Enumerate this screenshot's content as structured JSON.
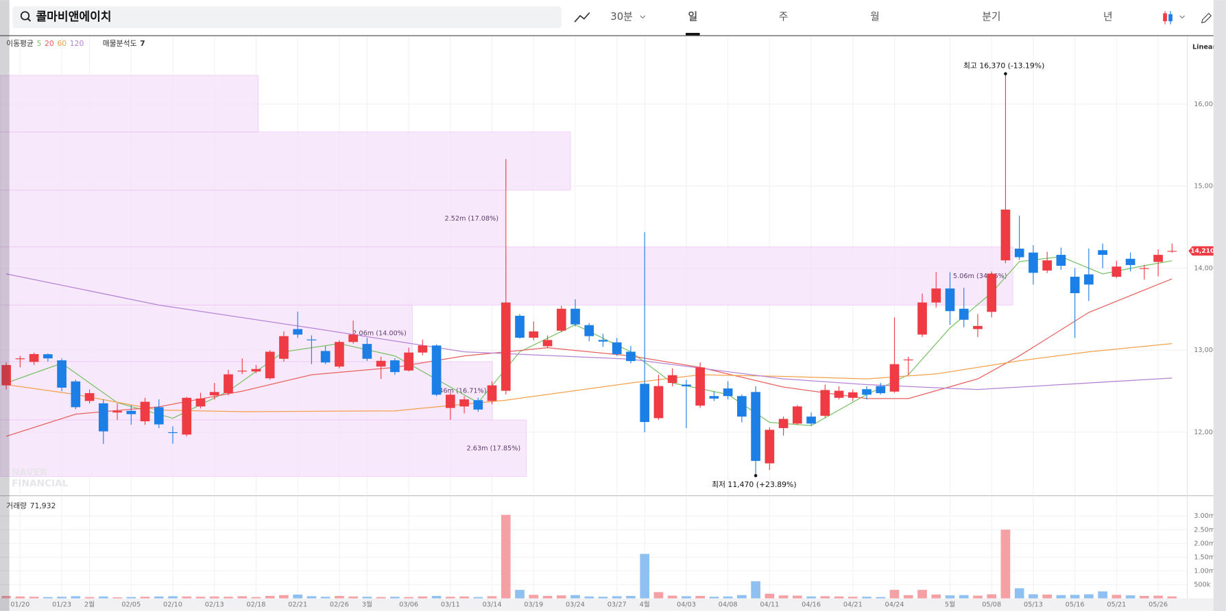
{
  "header": {
    "query": "콜마비앤에이치",
    "interval": "30분",
    "periods": [
      "일",
      "주",
      "월",
      "분기",
      "년"
    ],
    "active_period": 0
  },
  "watermark": [
    "NAVER",
    "FINANCIAL"
  ],
  "chart_data": [
    {
      "type": "candlestick",
      "ma_label": "이동평균",
      "profile_label": "매물분석도",
      "profile_count": 7,
      "scale_label": "Linear",
      "current_label": "14,210",
      "max_label": "최고 16,370 (-13.19%)",
      "min_label": "최저 11,470 (+23.89%)",
      "up_color": "#ee3b44",
      "down_color": "#1c7fe5",
      "ylim": [
        11240,
        16830
      ],
      "yticks": [
        {
          "value": 12000,
          "label": "12,000"
        },
        {
          "value": 13000,
          "label": "13,000"
        },
        {
          "value": 14000,
          "label": "14,000"
        },
        {
          "value": 15000,
          "label": "15,000"
        },
        {
          "value": 16000,
          "label": "16,000"
        }
      ],
      "grid": true,
      "open": [
        12571,
        12890,
        12857,
        12950,
        12876,
        12619,
        12381,
        12352,
        12240,
        12260,
        12133,
        12305,
        12000,
        11971,
        12314,
        12450,
        12476,
        12740,
        12740,
        12657,
        12895,
        13257,
        13130,
        12990,
        12800,
        13100,
        13076,
        12800,
        12876,
        12752,
        12971,
        13057,
        12295,
        12314,
        12390,
        12381,
        12505,
        13419,
        13152,
        13048,
        13238,
        13505,
        13305,
        13124,
        13095,
        12981,
        12590,
        12171,
        12600,
        12580,
        12324,
        12440,
        12533,
        12440,
        12490,
        11620,
        12050,
        12105,
        12190,
        12200,
        12419,
        12419,
        12524,
        12562,
        12495,
        12880,
        13190,
        13581,
        13752,
        13505,
        13257,
        13467,
        14095,
        14238,
        14190,
        13971,
        14162,
        13895,
        13924,
        14219,
        13895,
        14114,
        13995,
        14076,
        14210
      ],
      "high": [
        12850,
        12930,
        12970,
        12960,
        12900,
        12640,
        12520,
        12400,
        12350,
        12330,
        12420,
        12400,
        12070,
        12430,
        12480,
        12600,
        12760,
        12900,
        12820,
        13000,
        13230,
        13470,
        13180,
        13050,
        13120,
        13360,
        13150,
        12920,
        12900,
        13030,
        13130,
        13070,
        12480,
        12440,
        12420,
        12620,
        15330,
        13440,
        13350,
        13180,
        13540,
        13620,
        13330,
        13200,
        13150,
        13050,
        14438,
        12700,
        12780,
        12640,
        12850,
        12500,
        12620,
        12460,
        12560,
        12060,
        12190,
        12330,
        12240,
        12580,
        12560,
        12520,
        12560,
        12600,
        13400,
        12920,
        13690,
        13950,
        13950,
        13760,
        13440,
        13960,
        16370,
        14640,
        14280,
        14200,
        14250,
        14000,
        14240,
        14300,
        14090,
        14190,
        14040,
        14230,
        14300
      ],
      "low": [
        12520,
        12790,
        12820,
        12860,
        12500,
        12280,
        12350,
        11857,
        12150,
        12090,
        12090,
        12050,
        11860,
        11950,
        12290,
        12400,
        12450,
        12710,
        12720,
        12640,
        12860,
        13150,
        12830,
        12830,
        12780,
        13080,
        12870,
        12650,
        12700,
        12740,
        12940,
        12440,
        12150,
        12230,
        12250,
        12340,
        12460,
        13140,
        13120,
        13030,
        13220,
        13290,
        13110,
        13040,
        12930,
        12840,
        12000,
        12150,
        12560,
        12050,
        12300,
        12380,
        12400,
        12120,
        11470,
        11540,
        11960,
        12090,
        12080,
        12180,
        12400,
        12380,
        12400,
        12460,
        12480,
        12700,
        13160,
        13520,
        13310,
        13280,
        13160,
        13400,
        14060,
        14100,
        13800,
        13940,
        13980,
        13150,
        13600,
        14000,
        13880,
        13960,
        13860,
        13900,
        14190
      ],
      "close": [
        12819,
        12900,
        12952,
        12900,
        12543,
        12305,
        12476,
        12010,
        12260,
        12220,
        12371,
        12095,
        11990,
        12419,
        12410,
        12490,
        12705,
        12750,
        12770,
        12981,
        13171,
        13190,
        13120,
        12850,
        13100,
        13190,
        12895,
        12870,
        12733,
        12971,
        13057,
        12457,
        12457,
        12400,
        12276,
        12571,
        13581,
        13152,
        13229,
        13124,
        13505,
        13314,
        13171,
        13105,
        12952,
        12867,
        12124,
        12562,
        12695,
        12560,
        12790,
        12410,
        12440,
        12190,
        11650,
        12029,
        12162,
        12314,
        12105,
        12514,
        12505,
        12486,
        12457,
        12476,
        12829,
        12886,
        13581,
        13752,
        13476,
        13371,
        13295,
        13933,
        14714,
        14133,
        13943,
        14095,
        14029,
        13695,
        13800,
        14162,
        14019,
        14038,
        14000,
        14162,
        14210
      ],
      "moving_averages": [
        {
          "name": "5",
          "color": "#79c267",
          "x": [
            0,
            4,
            8,
            12,
            16,
            20,
            24,
            28,
            32,
            34,
            37,
            41,
            45,
            48,
            52,
            55,
            58,
            62,
            65,
            68,
            71,
            73,
            76,
            79,
            82,
            84
          ],
          "values": [
            12600,
            12840,
            12360,
            12170,
            12500,
            12980,
            13080,
            12930,
            12550,
            12360,
            12980,
            13310,
            12980,
            12600,
            12460,
            12120,
            12080,
            12460,
            12700,
            13270,
            13700,
            14080,
            14140,
            13930,
            14030,
            14090
          ]
        },
        {
          "name": "20",
          "color": "#e8605e",
          "x": [
            0,
            5,
            11,
            17,
            22,
            28,
            33,
            39,
            45,
            50,
            56,
            62,
            65,
            70,
            73,
            78,
            84
          ],
          "values": [
            11950,
            12220,
            12310,
            12500,
            12700,
            12790,
            12930,
            13030,
            12930,
            12790,
            12550,
            12410,
            12410,
            12650,
            12930,
            13460,
            13870
          ]
        },
        {
          "name": "60",
          "color": "#f3a04a",
          "x": [
            0,
            5,
            11,
            17,
            28,
            36,
            45,
            50,
            56,
            62,
            67,
            73,
            78,
            84
          ],
          "values": [
            12580,
            12460,
            12270,
            12250,
            12260,
            12390,
            12600,
            12700,
            12680,
            12650,
            12710,
            12870,
            12980,
            13080
          ]
        },
        {
          "name": "120",
          "color": "#b583d6",
          "x": [
            0,
            11,
            22,
            33,
            45,
            56,
            62,
            70,
            84
          ],
          "values": [
            13930,
            13550,
            13270,
            12980,
            12890,
            12650,
            12580,
            12520,
            12660
          ]
        }
      ],
      "volume_profile": {
        "color": "#f7e4fb",
        "stroke": "#edc6f5",
        "label_color": "#5e3a6e",
        "bands": [
          16350,
          15660,
          14950,
          14260,
          13550,
          12860,
          12150,
          11460
        ],
        "values": [
          1.29,
          2.85,
          2.52,
          5.06,
          2.06,
          2.46,
          2.63
        ],
        "value_labels": [
          null,
          null,
          "2.52m (17.08%)",
          "5.06m (34.36%)",
          "2.06m (14.00%)",
          "2.46m (16.71%)",
          "2.63m (17.85%)"
        ]
      }
    },
    {
      "type": "bar",
      "name": "거래량",
      "current_label": "71,932",
      "up_color": "#f5a0a5",
      "down_color": "#8fc0f2",
      "ylim": [
        0,
        3410000
      ],
      "yticks": [
        {
          "value": 500000,
          "label": "500k"
        },
        {
          "value": 1000000,
          "label": "1.00m"
        },
        {
          "value": 1500000,
          "label": "1.50m"
        },
        {
          "value": 2000000,
          "label": "2.00m"
        },
        {
          "value": 2500000,
          "label": "2.50m"
        },
        {
          "value": 3000000,
          "label": "3.00m"
        }
      ],
      "categories": [
        null,
        "01/20",
        null,
        null,
        "01/23",
        null,
        "2월",
        null,
        null,
        "02/05",
        null,
        null,
        "02/10",
        null,
        null,
        "02/13",
        null,
        null,
        "02/18",
        null,
        null,
        "02/21",
        null,
        null,
        "02/26",
        null,
        "3월",
        null,
        null,
        "03/06",
        null,
        null,
        "03/11",
        null,
        null,
        "03/14",
        null,
        null,
        "03/19",
        null,
        null,
        "03/24",
        null,
        null,
        "03/27",
        null,
        "4월",
        null,
        null,
        "04/03",
        null,
        null,
        "04/08",
        null,
        null,
        "04/11",
        null,
        null,
        "04/16",
        null,
        null,
        "04/21",
        null,
        null,
        "04/24",
        null,
        null,
        null,
        "5월",
        null,
        null,
        "05/08",
        null,
        null,
        "05/13",
        null,
        null,
        "05/16",
        null,
        null,
        "05/21",
        null,
        null,
        "05/26",
        null
      ],
      "values": [
        90000,
        70000,
        60000,
        50000,
        60000,
        80000,
        50000,
        70000,
        40000,
        50000,
        60000,
        70000,
        80000,
        70000,
        60000,
        70000,
        60000,
        80000,
        50000,
        90000,
        120000,
        140000,
        80000,
        60000,
        90000,
        70000,
        60000,
        50000,
        60000,
        50000,
        70000,
        90000,
        60000,
        70000,
        50000,
        80000,
        3040000,
        310000,
        130000,
        90000,
        110000,
        120000,
        70000,
        60000,
        80000,
        90000,
        1620000,
        230000,
        100000,
        80000,
        90000,
        60000,
        70000,
        120000,
        625000,
        170000,
        110000,
        100000,
        70000,
        80000,
        70000,
        60000,
        60000,
        50000,
        310000,
        120000,
        310000,
        140000,
        110000,
        120000,
        100000,
        150000,
        2500000,
        370000,
        150000,
        140000,
        120000,
        130000,
        150000,
        255000,
        130000,
        110000,
        90000,
        100000,
        71932
      ]
    }
  ]
}
